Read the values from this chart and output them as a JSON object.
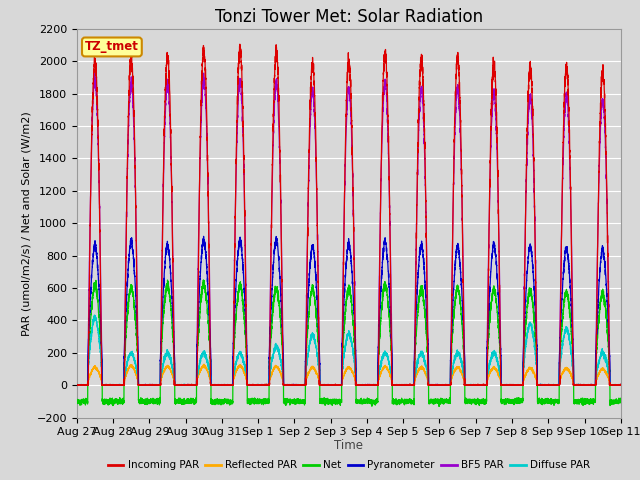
{
  "title": "Tonzi Tower Met: Solar Radiation",
  "ylabel": "PAR (umol/m2/s) / Net and Solar (W/m2)",
  "xlabel": "Time",
  "ylim": [
    -200,
    2200
  ],
  "yticks": [
    -200,
    0,
    200,
    400,
    600,
    800,
    1000,
    1200,
    1400,
    1600,
    1800,
    2000,
    2200
  ],
  "n_days": 15,
  "legend_labels": [
    "Incoming PAR",
    "Reflected PAR",
    "Net",
    "Pyranometer",
    "BF5 PAR",
    "Diffuse PAR"
  ],
  "legend_colors": [
    "#dd0000",
    "#ffaa00",
    "#00cc00",
    "#0000cc",
    "#9900cc",
    "#00cccc"
  ],
  "tz_label": "TZ_tmet",
  "tz_bg": "#ffff99",
  "tz_border": "#cc8800",
  "tz_text_color": "#cc0000",
  "background_color": "#d8d8d8",
  "plot_bg": "#d8d8d8",
  "grid_color": "#ffffff",
  "x_tick_labels": [
    "Aug 27",
    "Aug 28",
    "Aug 29",
    "Aug 30",
    "Aug 31",
    "Sep 1",
    "Sep 2",
    "Sep 3",
    "Sep 4",
    "Sep 5",
    "Sep 6",
    "Sep 7",
    "Sep 8",
    "Sep 9",
    "Sep 10",
    "Sep 11"
  ],
  "title_fontsize": 12,
  "tick_fontsize": 8,
  "incoming_peaks": [
    2000,
    2020,
    2030,
    2070,
    2070,
    2050,
    1980,
    2000,
    2040,
    2010,
    2010,
    1980,
    1960,
    1960,
    1930
  ],
  "bf5_peaks": [
    1900,
    1870,
    1870,
    1900,
    1880,
    1870,
    1820,
    1830,
    1870,
    1830,
    1840,
    1810,
    1790,
    1790,
    1760
  ],
  "blue_peaks": [
    870,
    890,
    870,
    900,
    900,
    900,
    860,
    880,
    890,
    870,
    860,
    870,
    860,
    850,
    840
  ],
  "green_peaks": [
    620,
    610,
    620,
    630,
    620,
    600,
    600,
    600,
    620,
    600,
    600,
    590,
    590,
    580,
    570
  ],
  "orange_peaks": [
    110,
    120,
    115,
    120,
    120,
    115,
    110,
    110,
    115,
    110,
    110,
    108,
    105,
    105,
    100
  ],
  "cyan_peaks": [
    420,
    200,
    200,
    200,
    200,
    240,
    310,
    320,
    200,
    200,
    200,
    200,
    380,
    350,
    200
  ],
  "net_night": -100
}
